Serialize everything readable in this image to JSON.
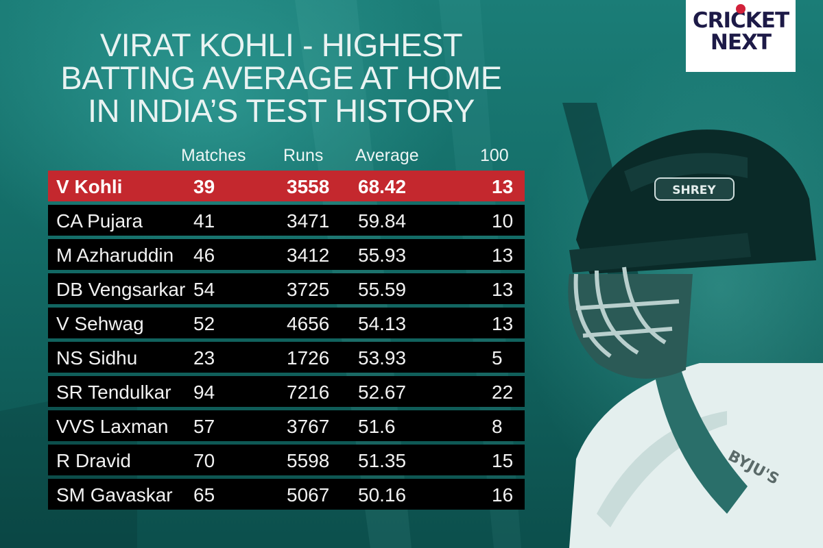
{
  "title_lines": [
    "VIRAT KOHLI - HIGHEST",
    "BATTING AVERAGE AT HOME",
    "IN INDIA’S TEST HISTORY"
  ],
  "logo": {
    "line1": "CRICKET",
    "line2": "NEXT"
  },
  "helmet_text": "SHREY",
  "sponsor_text": "BYJU'S",
  "colors": {
    "highlight": "#c4282e",
    "row": "#000000",
    "background": "#136b66"
  },
  "chart_data": {
    "type": "table",
    "columns": [
      "",
      "Matches",
      "Runs",
      "Average",
      "100"
    ],
    "rows": [
      {
        "name": "V Kohli",
        "matches": "39",
        "runs": "3558",
        "average": "68.42",
        "hundreds": "13",
        "highlighted": true
      },
      {
        "name": "CA Pujara",
        "matches": "41",
        "runs": "3471",
        "average": "59.84",
        "hundreds": "10"
      },
      {
        "name": "M Azharuddin",
        "matches": "46",
        "runs": "3412",
        "average": "55.93",
        "hundreds": "13"
      },
      {
        "name": "DB Vengsarkar",
        "matches": "54",
        "runs": "3725",
        "average": "55.59",
        "hundreds": "13"
      },
      {
        "name": "V Sehwag",
        "matches": "52",
        "runs": "4656",
        "average": "54.13",
        "hundreds": "13"
      },
      {
        "name": "NS Sidhu",
        "matches": "23",
        "runs": "1726",
        "average": "53.93",
        "hundreds": "5"
      },
      {
        "name": "SR Tendulkar",
        "matches": "94",
        "runs": "7216",
        "average": "52.67",
        "hundreds": "22"
      },
      {
        "name": "VVS Laxman",
        "matches": "57",
        "runs": "3767",
        "average": "51.6",
        "hundreds": "8"
      },
      {
        "name": "R Dravid",
        "matches": "70",
        "runs": "5598",
        "average": "51.35",
        "hundreds": "15"
      },
      {
        "name": "SM Gavaskar",
        "matches": "65",
        "runs": "5067",
        "average": "50.16",
        "hundreds": "16"
      }
    ]
  }
}
